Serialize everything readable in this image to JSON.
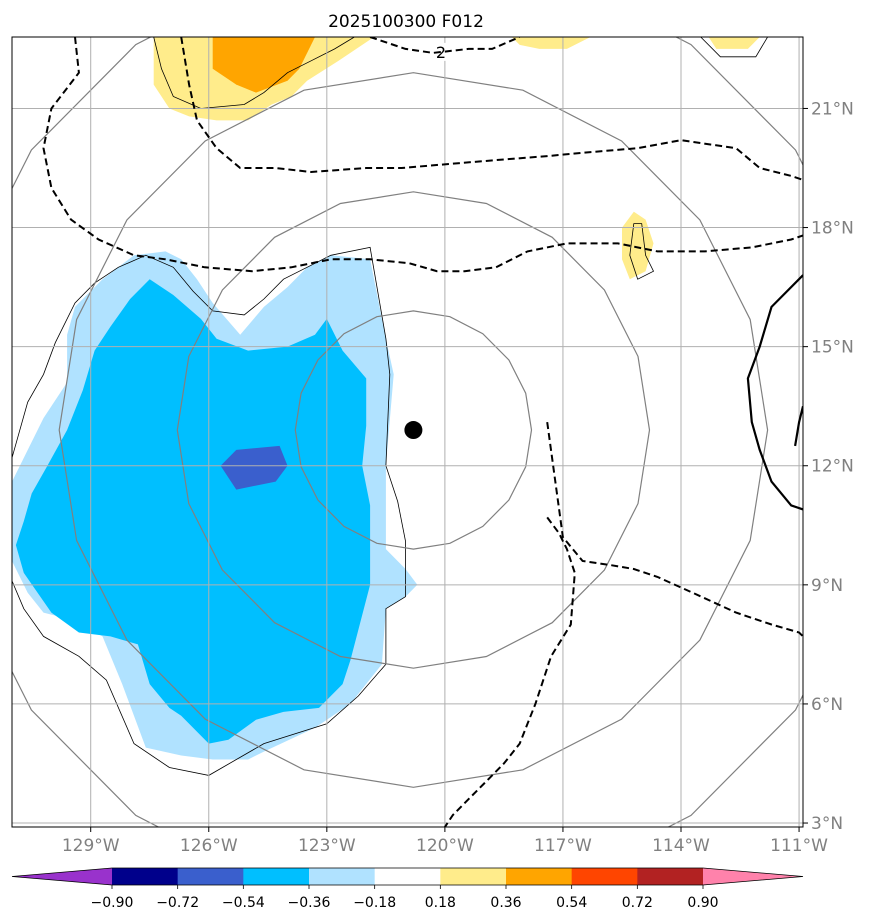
{
  "chart_data": {
    "type": "filled-contour-map",
    "title": "2025100300 F012",
    "x_axis": {
      "range": [
        -131,
        -110.9
      ],
      "ticks": [
        -129,
        -126,
        -123,
        -120,
        -117,
        -114,
        -111
      ],
      "tick_labels": [
        "129°W",
        "126°W",
        "123°W",
        "120°W",
        "117°W",
        "114°W",
        "111°W"
      ]
    },
    "y_axis": {
      "range": [
        2.9,
        22.8
      ],
      "ticks": [
        3,
        6,
        9,
        12,
        15,
        18,
        21
      ],
      "tick_labels": [
        "3°N",
        "6°N",
        "9°N",
        "12°N",
        "15°N",
        "18°N",
        "21°N"
      ],
      "position": "right"
    },
    "grid": true,
    "center_marker": {
      "lon": -120.8,
      "lat": 12.9
    },
    "range_rings_deg": [
      3,
      6,
      9,
      12
    ],
    "colorbar": {
      "orientation": "horizontal",
      "extend": "both",
      "levels": [
        -0.9,
        -0.72,
        -0.54,
        -0.36,
        -0.18,
        0.18,
        0.36,
        0.54,
        0.72,
        0.9
      ],
      "tick_labels": [
        "−0.90",
        "−0.72",
        "−0.54",
        "−0.36",
        "−0.18",
        "0.18",
        "0.36",
        "0.54",
        "0.72",
        "0.90"
      ],
      "colors": [
        "#9932CC",
        "#00008B",
        "#3A5FCD",
        "#00BFFF",
        "#B0E2FF",
        "#FFFFFF",
        "#FFEC8B",
        "#FFA500",
        "#FF4500",
        "#B22222",
        "#FF82AB"
      ]
    },
    "filled_regions": [
      {
        "level": "-0.36 to -0.18",
        "color": "#B0E2FF",
        "points": [
          [
            -130.8,
            12.0
          ],
          [
            -130.2,
            13.2
          ],
          [
            -129.6,
            14.1
          ],
          [
            -129.6,
            15.3
          ],
          [
            -129.4,
            16.0
          ],
          [
            -128.7,
            16.7
          ],
          [
            -127.9,
            17.3
          ],
          [
            -127.1,
            17.4
          ],
          [
            -126.7,
            17.2
          ],
          [
            -126.3,
            16.7
          ],
          [
            -125.9,
            16.1
          ],
          [
            -125.2,
            15.3
          ],
          [
            -124.6,
            16.0
          ],
          [
            -124.0,
            16.5
          ],
          [
            -123.5,
            17.0
          ],
          [
            -122.9,
            17.3
          ],
          [
            -121.9,
            17.2
          ],
          [
            -121.5,
            15.2
          ],
          [
            -121.3,
            14.3
          ],
          [
            -121.5,
            12.0
          ],
          [
            -121.5,
            9.9
          ],
          [
            -121.0,
            9.4
          ],
          [
            -120.7,
            9.0
          ],
          [
            -121.0,
            8.7
          ],
          [
            -121.5,
            8.4
          ],
          [
            -121.6,
            7.0
          ],
          [
            -122.4,
            6.0
          ],
          [
            -123.3,
            5.4
          ],
          [
            -124.6,
            4.8
          ],
          [
            -125.0,
            4.6
          ],
          [
            -125.9,
            4.6
          ],
          [
            -126.7,
            4.7
          ],
          [
            -127.6,
            4.9
          ],
          [
            -128.2,
            6.5
          ],
          [
            -128.7,
            7.7
          ],
          [
            -129.4,
            8.1
          ],
          [
            -130.2,
            8.3
          ],
          [
            -130.6,
            8.8
          ],
          [
            -131.0,
            9.6
          ],
          [
            -131.0,
            11.6
          ]
        ]
      },
      {
        "level": "-0.54 to -0.36",
        "color": "#00BFFF",
        "points": [
          [
            -130.7,
            10.6
          ],
          [
            -130.5,
            11.3
          ],
          [
            -130.1,
            12.0
          ],
          [
            -129.6,
            12.9
          ],
          [
            -129.2,
            13.9
          ],
          [
            -128.9,
            14.9
          ],
          [
            -128.5,
            15.5
          ],
          [
            -128.0,
            16.2
          ],
          [
            -127.5,
            16.7
          ],
          [
            -126.9,
            16.3
          ],
          [
            -126.2,
            15.7
          ],
          [
            -125.8,
            15.2
          ],
          [
            -125.0,
            14.9
          ],
          [
            -124.0,
            15.0
          ],
          [
            -123.3,
            15.3
          ],
          [
            -123.0,
            15.7
          ],
          [
            -122.6,
            14.9
          ],
          [
            -122.0,
            14.2
          ],
          [
            -122.0,
            13.0
          ],
          [
            -122.1,
            12.0
          ],
          [
            -121.9,
            11.0
          ],
          [
            -121.9,
            10.0
          ],
          [
            -121.9,
            9.0
          ],
          [
            -122.4,
            7.1
          ],
          [
            -122.6,
            6.5
          ],
          [
            -123.2,
            5.9
          ],
          [
            -124.1,
            5.8
          ],
          [
            -124.8,
            5.6
          ],
          [
            -125.5,
            5.1
          ],
          [
            -126.0,
            5.0
          ],
          [
            -126.7,
            5.7
          ],
          [
            -127.0,
            5.9
          ],
          [
            -127.5,
            6.5
          ],
          [
            -127.8,
            7.5
          ],
          [
            -128.5,
            7.7
          ],
          [
            -129.3,
            7.8
          ],
          [
            -130.0,
            8.3
          ],
          [
            -130.7,
            9.3
          ],
          [
            -130.9,
            10.0
          ]
        ]
      },
      {
        "level": "-0.72 to -0.54",
        "color": "#3A5FCD",
        "points": [
          [
            -125.7,
            12.0
          ],
          [
            -125.3,
            12.4
          ],
          [
            -124.2,
            12.5
          ],
          [
            -124.0,
            12.0
          ],
          [
            -124.3,
            11.6
          ],
          [
            -125.3,
            11.4
          ]
        ]
      },
      {
        "level": "0.18 to 0.36",
        "color": "#FFEC8B",
        "points": [
          [
            -127.4,
            22.8
          ],
          [
            -127.4,
            21.6
          ],
          [
            -127.0,
            21.0
          ],
          [
            -126.5,
            20.8
          ],
          [
            -125.8,
            20.7
          ],
          [
            -125.0,
            20.7
          ],
          [
            -124.4,
            21.1
          ],
          [
            -123.9,
            21.3
          ],
          [
            -123.5,
            21.7
          ],
          [
            -122.7,
            22.2
          ],
          [
            -121.8,
            22.8
          ]
        ]
      },
      {
        "level": "0.36 to 0.54",
        "color": "#FFA500",
        "points": [
          [
            -125.9,
            22.8
          ],
          [
            -125.9,
            22.0
          ],
          [
            -125.3,
            21.6
          ],
          [
            -124.8,
            21.4
          ],
          [
            -124.0,
            21.7
          ],
          [
            -123.7,
            22.0
          ],
          [
            -123.3,
            22.8
          ]
        ]
      },
      {
        "level": "0.18 to 0.36",
        "color": "#FFEC8B",
        "points": [
          [
            -118.3,
            22.8
          ],
          [
            -118.1,
            22.6
          ],
          [
            -117.6,
            22.5
          ],
          [
            -116.9,
            22.5
          ],
          [
            -116.3,
            22.8
          ]
        ]
      },
      {
        "level": "0.18 to 0.36",
        "color": "#FFEC8B",
        "points": [
          [
            -113.3,
            22.8
          ],
          [
            -113.1,
            22.5
          ],
          [
            -112.3,
            22.5
          ],
          [
            -112.0,
            22.8
          ]
        ]
      },
      {
        "level": "0.18 to 0.36",
        "color": "#FFEC8B",
        "points": [
          [
            -115.5,
            18.0
          ],
          [
            -115.2,
            18.4
          ],
          [
            -114.9,
            18.2
          ],
          [
            -114.7,
            17.6
          ],
          [
            -114.9,
            16.9
          ],
          [
            -115.3,
            16.7
          ],
          [
            -115.5,
            17.2
          ]
        ]
      }
    ],
    "thin_contours": [
      {
        "closed": true,
        "points": [
          [
            -131.0,
            12.2
          ],
          [
            -130.6,
            13.6
          ],
          [
            -130.2,
            14.3
          ],
          [
            -129.9,
            15.1
          ],
          [
            -129.4,
            16.1
          ],
          [
            -128.9,
            16.6
          ],
          [
            -128.3,
            17.0
          ],
          [
            -127.6,
            17.3
          ],
          [
            -126.9,
            17.0
          ],
          [
            -126.4,
            16.4
          ],
          [
            -125.9,
            15.9
          ],
          [
            -125.1,
            15.8
          ],
          [
            -124.6,
            16.2
          ],
          [
            -124.1,
            16.7
          ],
          [
            -123.3,
            17.1
          ],
          [
            -122.9,
            17.3
          ],
          [
            -121.9,
            17.5
          ],
          [
            -121.5,
            15.2
          ],
          [
            -121.4,
            14.3
          ],
          [
            -121.5,
            12.0
          ],
          [
            -121.2,
            11.1
          ],
          [
            -121.0,
            10.1
          ],
          [
            -121.0,
            8.7
          ],
          [
            -121.5,
            8.4
          ],
          [
            -121.5,
            7.0
          ],
          [
            -122.2,
            6.2
          ],
          [
            -123.0,
            5.5
          ],
          [
            -124.6,
            5.0
          ],
          [
            -126.0,
            4.2
          ],
          [
            -127.0,
            4.4
          ],
          [
            -127.9,
            5.0
          ],
          [
            -128.6,
            6.6
          ],
          [
            -129.3,
            7.2
          ],
          [
            -130.2,
            7.7
          ],
          [
            -130.7,
            8.4
          ],
          [
            -131.0,
            9.1
          ]
        ]
      },
      {
        "closed": false,
        "points": [
          [
            -127.4,
            22.8
          ],
          [
            -127.2,
            22.0
          ],
          [
            -126.9,
            21.3
          ],
          [
            -126.2,
            21.0
          ],
          [
            -125.1,
            21.1
          ],
          [
            -124.6,
            21.4
          ],
          [
            -124.0,
            21.9
          ],
          [
            -123.4,
            22.2
          ],
          [
            -122.8,
            22.5
          ],
          [
            -122.3,
            22.8
          ]
        ]
      },
      {
        "closed": false,
        "points": [
          [
            -113.5,
            22.8
          ],
          [
            -113.0,
            22.3
          ],
          [
            -112.1,
            22.3
          ],
          [
            -111.8,
            22.8
          ]
        ]
      },
      {
        "closed": true,
        "points": [
          [
            -115.2,
            18.1
          ],
          [
            -115.0,
            18.1
          ],
          [
            -114.9,
            17.3
          ],
          [
            -114.7,
            16.9
          ],
          [
            -115.1,
            16.7
          ],
          [
            -115.3,
            17.3
          ]
        ]
      }
    ],
    "dashed_contours": [
      {
        "label": "2",
        "label_position": [
          -120.1,
          22.4
        ],
        "points": [
          [
            -126.7,
            22.8
          ],
          [
            -126.5,
            21.6
          ],
          [
            -126.3,
            20.7
          ],
          [
            -125.8,
            20.0
          ],
          [
            -125.2,
            19.5
          ],
          [
            -124.3,
            19.5
          ],
          [
            -123.4,
            19.4
          ],
          [
            -122.0,
            19.5
          ],
          [
            -121.1,
            19.5
          ],
          [
            -119.9,
            19.6
          ],
          [
            -118.7,
            19.7
          ],
          [
            -117.4,
            19.8
          ],
          [
            -116.3,
            19.9
          ],
          [
            -115.1,
            20.0
          ],
          [
            -114.0,
            20.2
          ],
          [
            -112.6,
            20.0
          ],
          [
            -112.0,
            19.5
          ],
          [
            -111.2,
            19.3
          ],
          [
            -110.9,
            19.2
          ]
        ]
      },
      {
        "points": [
          [
            -121.9,
            22.8
          ],
          [
            -121.0,
            22.5
          ],
          [
            -120.3,
            22.4
          ],
          [
            -119.4,
            22.5
          ],
          [
            -118.8,
            22.5
          ],
          [
            -118.1,
            22.8
          ]
        ]
      },
      {
        "points": [
          [
            -129.4,
            22.8
          ],
          [
            -129.3,
            21.9
          ],
          [
            -130.0,
            21.0
          ],
          [
            -130.2,
            20.0
          ],
          [
            -130.0,
            19.0
          ],
          [
            -129.5,
            18.2
          ],
          [
            -128.8,
            17.7
          ],
          [
            -127.9,
            17.3
          ],
          [
            -127.1,
            17.2
          ],
          [
            -126.1,
            17.0
          ],
          [
            -124.9,
            16.9
          ],
          [
            -123.9,
            17.0
          ],
          [
            -122.9,
            17.2
          ],
          [
            -121.9,
            17.2
          ],
          [
            -120.9,
            17.1
          ],
          [
            -120.2,
            16.9
          ],
          [
            -119.5,
            16.9
          ],
          [
            -118.7,
            17.0
          ],
          [
            -117.9,
            17.4
          ],
          [
            -116.9,
            17.6
          ],
          [
            -115.6,
            17.6
          ],
          [
            -114.6,
            17.4
          ],
          [
            -113.4,
            17.4
          ],
          [
            -112.2,
            17.5
          ],
          [
            -111.2,
            17.7
          ],
          [
            -110.9,
            17.8
          ]
        ]
      },
      {
        "points": [
          [
            -117.4,
            13.1
          ],
          [
            -117.0,
            10.2
          ],
          [
            -116.5,
            9.6
          ],
          [
            -115.8,
            9.5
          ],
          [
            -115.2,
            9.4
          ],
          [
            -114.6,
            9.2
          ],
          [
            -113.7,
            8.8
          ],
          [
            -112.6,
            8.3
          ],
          [
            -111.7,
            8.0
          ],
          [
            -111.0,
            7.8
          ],
          [
            -110.9,
            7.7
          ]
        ]
      },
      {
        "points": [
          [
            -117.4,
            10.7
          ],
          [
            -117.1,
            10.3
          ],
          [
            -116.9,
            9.9
          ],
          [
            -116.7,
            9.3
          ],
          [
            -116.8,
            8.0
          ],
          [
            -117.3,
            7.2
          ],
          [
            -117.7,
            6.0
          ],
          [
            -117.9,
            5.5
          ],
          [
            -118.1,
            5.0
          ],
          [
            -118.5,
            4.5
          ],
          [
            -118.9,
            4.1
          ],
          [
            -119.4,
            3.6
          ],
          [
            -119.8,
            3.2
          ],
          [
            -120.0,
            2.9
          ]
        ]
      }
    ],
    "solid_bold_contours": [
      {
        "points": [
          [
            -110.9,
            16.8
          ],
          [
            -111.7,
            16.0
          ],
          [
            -112.0,
            15.0
          ],
          [
            -112.3,
            14.2
          ],
          [
            -112.2,
            13.1
          ],
          [
            -112.0,
            12.4
          ],
          [
            -111.7,
            11.6
          ],
          [
            -111.2,
            11.0
          ],
          [
            -110.9,
            10.9
          ]
        ]
      },
      {
        "points": [
          [
            -110.9,
            13.5
          ],
          [
            -111.0,
            13.1
          ],
          [
            -111.1,
            12.5
          ]
        ]
      }
    ]
  }
}
